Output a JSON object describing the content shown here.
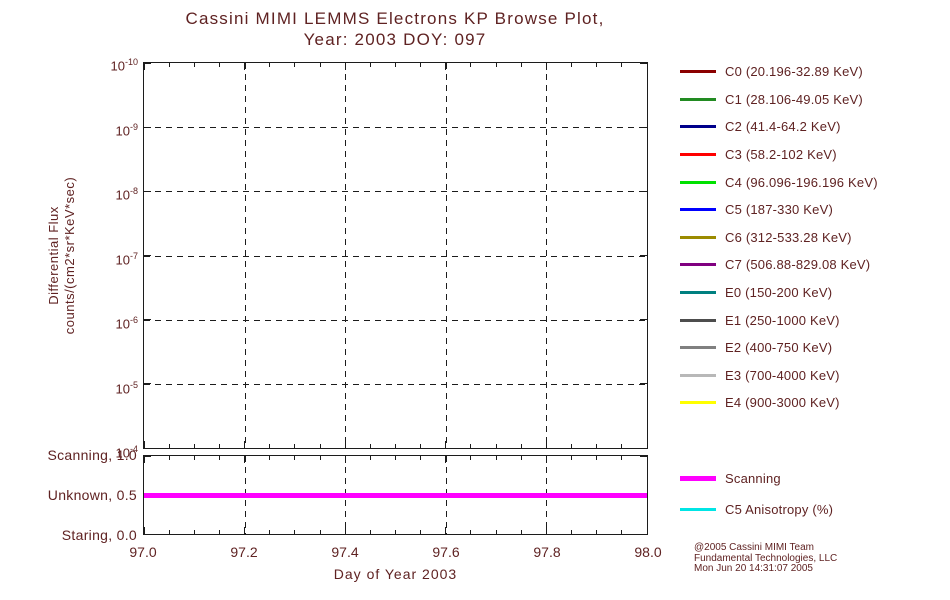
{
  "colors": {
    "text": "#5f2222",
    "axis": "#1c1c1c",
    "background": "#ffffff"
  },
  "title": {
    "line1": "Cassini MIMI LEMMS Electrons KP Browse Plot,",
    "line2": "Year: 2003 DOY: 097"
  },
  "main_plot": {
    "ylabel_line1": "Differential Flux",
    "ylabel_line2": "counts/(cm2*sr*KeV*sec)",
    "y_ticks": [
      {
        "base": "10",
        "exp": "-10"
      },
      {
        "base": "10",
        "exp": "-9"
      },
      {
        "base": "10",
        "exp": "-8"
      },
      {
        "base": "10",
        "exp": "-7"
      },
      {
        "base": "10",
        "exp": "-6"
      },
      {
        "base": "10",
        "exp": "-5"
      },
      {
        "base": "10",
        "exp": "-4"
      }
    ],
    "x_ticks": [
      "97.0",
      "97.2",
      "97.4",
      "97.6",
      "97.8",
      "98.0"
    ],
    "xlabel": "Day of Year 2003"
  },
  "status_panel": {
    "rows": [
      {
        "label": "Scanning, 1.0",
        "frac": 0
      },
      {
        "label": "Unknown, 0.5",
        "frac": 0.5
      },
      {
        "label": "Staring, 0.0",
        "frac": 1
      }
    ],
    "line": {
      "name": "Scanning",
      "value": 0.5,
      "frac": 0.5,
      "color": "#ff00ff"
    }
  },
  "legend": [
    {
      "label": "C0 (20.196-32.89 KeV)",
      "color": "#8b0000"
    },
    {
      "label": "C1 (28.106-49.05 KeV)",
      "color": "#228b22"
    },
    {
      "label": "C2 (41.4-64.2 KeV)",
      "color": "#00008b"
    },
    {
      "label": "C3 (58.2-102 KeV)",
      "color": "#ff0000"
    },
    {
      "label": "C4 (96.096-196.196 KeV)",
      "color": "#00e100"
    },
    {
      "label": "C5 (187-330 KeV)",
      "color": "#0000ff"
    },
    {
      "label": "C6 (312-533.28 KeV)",
      "color": "#9b8b00"
    },
    {
      "label": "C7 (506.88-829.08 KeV)",
      "color": "#800080"
    },
    {
      "label": "E0 (150-200 KeV)",
      "color": "#008080"
    },
    {
      "label": "E1 (250-1000 KeV)",
      "color": "#4d4d4d"
    },
    {
      "label": "E2 (400-750 KeV)",
      "color": "#808080"
    },
    {
      "label": "E3 (700-4000 KeV)",
      "color": "#b8b8b8"
    },
    {
      "label": "E4 (900-3000 KeV)",
      "color": "#ffff00"
    }
  ],
  "legend2": [
    {
      "label": "Scanning",
      "color": "#ff00ff",
      "weight": 5
    },
    {
      "label": "C5 Anisotropy (%)",
      "color": "#00e5e5",
      "weight": 3
    }
  ],
  "credits": {
    "line1": "@2005 Cassini MIMI Team",
    "line2": "Fundamental Technologies, LLC",
    "line3": "Mon Jun 20 14:31:07 2005"
  },
  "chart_data": {
    "type": "line",
    "title": "Cassini MIMI LEMMS Electrons KP Browse Plot, Year: 2003 DOY: 097",
    "xlabel": "Day of Year 2003",
    "ylabel": "Differential Flux counts/(cm2*sr*KeV*sec)",
    "x_range": [
      97.0,
      98.0
    ],
    "x_tick_labels": [
      "97.0",
      "97.2",
      "97.4",
      "97.6",
      "97.8",
      "98.0"
    ],
    "y_scale": "log",
    "y_tick_labels": [
      "10^-10",
      "10^-9",
      "10^-8",
      "10^-7",
      "10^-6",
      "10^-5",
      "10^-4"
    ],
    "y_axis_note": "decade labels run 10^-10 at top to 10^-4 at bottom; no flux data plotted for this day",
    "grid": "dashed",
    "legend_position": "right",
    "series": [
      {
        "name": "C0",
        "energy": "20.196-32.89 KeV",
        "color": "#8b0000",
        "points": []
      },
      {
        "name": "C1",
        "energy": "28.106-49.05 KeV",
        "color": "#228b22",
        "points": []
      },
      {
        "name": "C2",
        "energy": "41.4-64.2 KeV",
        "color": "#00008b",
        "points": []
      },
      {
        "name": "C3",
        "energy": "58.2-102 KeV",
        "color": "#ff0000",
        "points": []
      },
      {
        "name": "C4",
        "energy": "96.096-196.196 KeV",
        "color": "#00e100",
        "points": []
      },
      {
        "name": "C5",
        "energy": "187-330 KeV",
        "color": "#0000ff",
        "points": []
      },
      {
        "name": "C6",
        "energy": "312-533.28 KeV",
        "color": "#9b8b00",
        "points": []
      },
      {
        "name": "C7",
        "energy": "506.88-829.08 KeV",
        "color": "#800080",
        "points": []
      },
      {
        "name": "E0",
        "energy": "150-200 KeV",
        "color": "#008080",
        "points": []
      },
      {
        "name": "E1",
        "energy": "250-1000 KeV",
        "color": "#4d4d4d",
        "points": []
      },
      {
        "name": "E2",
        "energy": "400-750 KeV",
        "color": "#808080",
        "points": []
      },
      {
        "name": "E3",
        "energy": "700-4000 KeV",
        "color": "#b8b8b8",
        "points": []
      },
      {
        "name": "E4",
        "energy": "900-3000 KeV",
        "color": "#ffff00",
        "points": []
      }
    ],
    "status_subplot": {
      "y_ticks": [
        {
          "value": 1.0,
          "label": "Scanning"
        },
        {
          "value": 0.5,
          "label": "Unknown"
        },
        {
          "value": 0.0,
          "label": "Staring"
        }
      ],
      "series": [
        {
          "name": "Scanning",
          "color": "#ff00ff",
          "x": [
            97.0,
            98.0
          ],
          "y": [
            0.5,
            0.5
          ]
        }
      ]
    }
  }
}
